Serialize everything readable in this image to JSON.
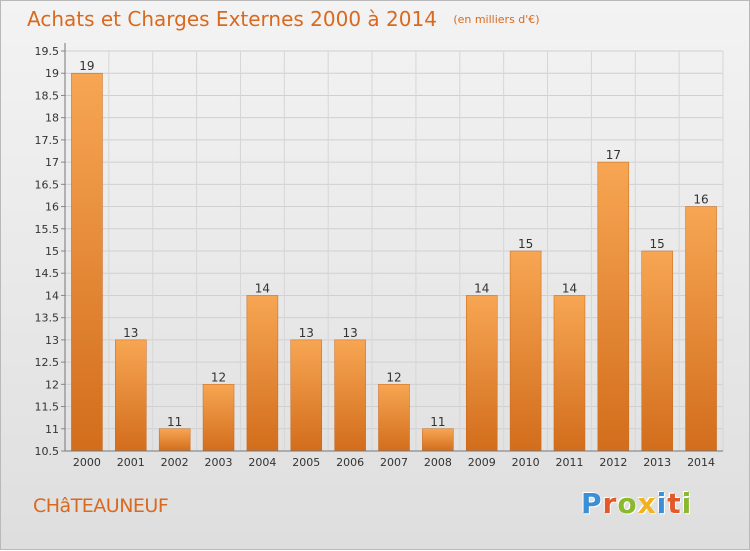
{
  "header": {
    "title": "Achats et Charges Externes 2000 à 2014",
    "subtitle": "(en milliers d'€)"
  },
  "footer": {
    "town": "CHâTEAUNEUF",
    "logo_text": "Proxiti"
  },
  "colors": {
    "title": "#d9691e",
    "bar_light": "#f7a653",
    "bar_dark": "#d26d1c",
    "logo": [
      "#3a8fd6",
      "#e2592a",
      "#8ab92d",
      "#f0b21d",
      "#3a8fd6",
      "#e2592a",
      "#8ab92d"
    ]
  },
  "chart_data": {
    "type": "bar",
    "categories": [
      "2000",
      "2001",
      "2002",
      "2003",
      "2004",
      "2005",
      "2006",
      "2007",
      "2008",
      "2009",
      "2010",
      "2011",
      "2012",
      "2013",
      "2014"
    ],
    "values": [
      19,
      13,
      11,
      12,
      14,
      13,
      13,
      12,
      11,
      14,
      15,
      14,
      17,
      15,
      16
    ],
    "data_labels": [
      "19",
      "13",
      "11",
      "12",
      "14",
      "13",
      "13",
      "12",
      "11",
      "14",
      "15",
      "14",
      "17",
      "15",
      "16"
    ],
    "ylim": [
      10.5,
      19.5
    ],
    "yticks": [
      10.5,
      11,
      11.5,
      12,
      12.5,
      13,
      13.5,
      14,
      14.5,
      15,
      15.5,
      16,
      16.5,
      17,
      17.5,
      18,
      18.5,
      19,
      19.5
    ],
    "ytick_labels": [
      "10.5",
      "11",
      "11.5",
      "12",
      "12.5",
      "13",
      "13.5",
      "14",
      "14.5",
      "15",
      "15.5",
      "16",
      "16.5",
      "17",
      "17.5",
      "18",
      "18.5",
      "19",
      "19.5"
    ],
    "grid": true,
    "xlabel": "",
    "ylabel": ""
  }
}
